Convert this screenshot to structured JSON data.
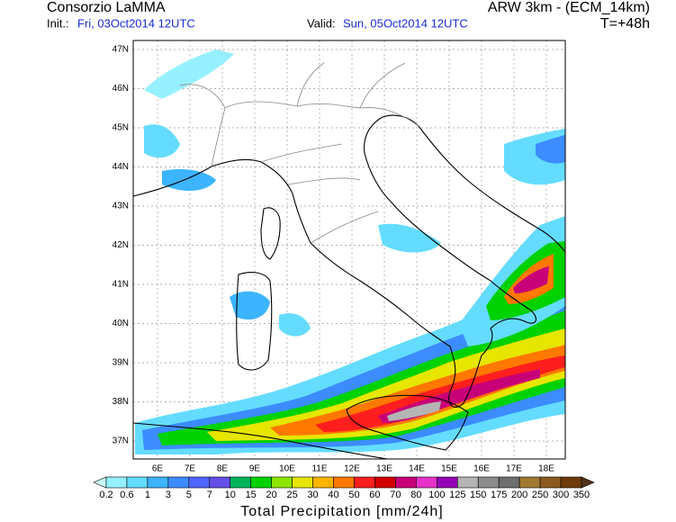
{
  "header": {
    "left_title": "Consorzio LaMMA",
    "init_label": "Init.:",
    "init_value": "Fri, 03Oct2014 12UTC",
    "valid_label": "Valid:",
    "valid_value": "Sun, 05Oct2014 12UTC",
    "right_title": "ARW 3km - (ECM_14km)",
    "forecast_time": "T=+48h"
  },
  "map": {
    "lat_labels": [
      "47N",
      "46N",
      "45N",
      "44N",
      "43N",
      "42N",
      "41N",
      "40N",
      "39N",
      "38N",
      "37N"
    ],
    "lon_labels": [
      "6E",
      "7E",
      "8E",
      "9E",
      "10E",
      "11E",
      "12E",
      "13E",
      "14E",
      "15E",
      "16E",
      "17E",
      "18E"
    ]
  },
  "colorbar": {
    "levels": [
      0.2,
      0.6,
      1,
      3,
      5,
      7,
      10,
      15,
      20,
      25,
      30,
      40,
      50,
      60,
      70,
      80,
      100,
      125,
      150,
      175,
      200,
      250,
      300,
      350
    ],
    "colors": [
      "#96f0ff",
      "#64dcff",
      "#3cb4ff",
      "#3c8cff",
      "#5064ff",
      "#6450e6",
      "#00b45a",
      "#00d200",
      "#8ce600",
      "#e6e600",
      "#ffb400",
      "#ff7800",
      "#ff1e1e",
      "#d20000",
      "#c80078",
      "#e632c8",
      "#9600b4",
      "#b4b4b4",
      "#8c8c8c",
      "#6e6e6e",
      "#a07832",
      "#8c5a1e",
      "#6e3c0a"
    ],
    "under_color": "#c8ffff",
    "over_color": "#503214",
    "title": "Total Precipitation [mm/24h]"
  }
}
